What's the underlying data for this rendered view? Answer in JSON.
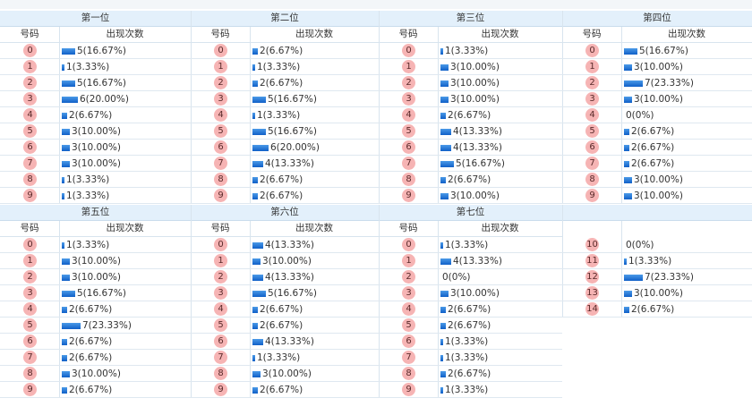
{
  "panels": [
    {
      "title": "第一位",
      "col_number": "号码",
      "col_count": "出现次数",
      "rows": [
        {
          "n": "0",
          "text": "5(16.67%)",
          "count": 5
        },
        {
          "n": "1",
          "text": "1(3.33%)",
          "count": 1
        },
        {
          "n": "2",
          "text": "5(16.67%)",
          "count": 5
        },
        {
          "n": "3",
          "text": "6(20.00%)",
          "count": 6
        },
        {
          "n": "4",
          "text": "2(6.67%)",
          "count": 2
        },
        {
          "n": "5",
          "text": "3(10.00%)",
          "count": 3
        },
        {
          "n": "6",
          "text": "3(10.00%)",
          "count": 3
        },
        {
          "n": "7",
          "text": "3(10.00%)",
          "count": 3
        },
        {
          "n": "8",
          "text": "1(3.33%)",
          "count": 1
        },
        {
          "n": "9",
          "text": "1(3.33%)",
          "count": 1
        }
      ]
    },
    {
      "title": "第二位",
      "col_number": "号码",
      "col_count": "出现次数",
      "rows": [
        {
          "n": "0",
          "text": "2(6.67%)",
          "count": 2
        },
        {
          "n": "1",
          "text": "1(3.33%)",
          "count": 1
        },
        {
          "n": "2",
          "text": "2(6.67%)",
          "count": 2
        },
        {
          "n": "3",
          "text": "5(16.67%)",
          "count": 5
        },
        {
          "n": "4",
          "text": "1(3.33%)",
          "count": 1
        },
        {
          "n": "5",
          "text": "5(16.67%)",
          "count": 5
        },
        {
          "n": "6",
          "text": "6(20.00%)",
          "count": 6
        },
        {
          "n": "7",
          "text": "4(13.33%)",
          "count": 4
        },
        {
          "n": "8",
          "text": "2(6.67%)",
          "count": 2
        },
        {
          "n": "9",
          "text": "2(6.67%)",
          "count": 2
        }
      ]
    },
    {
      "title": "第三位",
      "col_number": "号码",
      "col_count": "出现次数",
      "rows": [
        {
          "n": "0",
          "text": "1(3.33%)",
          "count": 1
        },
        {
          "n": "1",
          "text": "3(10.00%)",
          "count": 3
        },
        {
          "n": "2",
          "text": "3(10.00%)",
          "count": 3
        },
        {
          "n": "3",
          "text": "3(10.00%)",
          "count": 3
        },
        {
          "n": "4",
          "text": "2(6.67%)",
          "count": 2
        },
        {
          "n": "5",
          "text": "4(13.33%)",
          "count": 4
        },
        {
          "n": "6",
          "text": "4(13.33%)",
          "count": 4
        },
        {
          "n": "7",
          "text": "5(16.67%)",
          "count": 5
        },
        {
          "n": "8",
          "text": "2(6.67%)",
          "count": 2
        },
        {
          "n": "9",
          "text": "3(10.00%)",
          "count": 3
        }
      ]
    },
    {
      "title": "第四位",
      "col_number": "号码",
      "col_count": "出现次数",
      "rows": [
        {
          "n": "0",
          "text": "5(16.67%)",
          "count": 5
        },
        {
          "n": "1",
          "text": "3(10.00%)",
          "count": 3
        },
        {
          "n": "2",
          "text": "7(23.33%)",
          "count": 7
        },
        {
          "n": "3",
          "text": "3(10.00%)",
          "count": 3
        },
        {
          "n": "4",
          "text": "0(0%)",
          "count": 0
        },
        {
          "n": "5",
          "text": "2(6.67%)",
          "count": 2
        },
        {
          "n": "6",
          "text": "2(6.67%)",
          "count": 2
        },
        {
          "n": "7",
          "text": "2(6.67%)",
          "count": 2
        },
        {
          "n": "8",
          "text": "3(10.00%)",
          "count": 3
        },
        {
          "n": "9",
          "text": "3(10.00%)",
          "count": 3
        }
      ]
    },
    {
      "title": "第五位",
      "col_number": "号码",
      "col_count": "出现次数",
      "rows": [
        {
          "n": "0",
          "text": "1(3.33%)",
          "count": 1
        },
        {
          "n": "1",
          "text": "3(10.00%)",
          "count": 3
        },
        {
          "n": "2",
          "text": "3(10.00%)",
          "count": 3
        },
        {
          "n": "3",
          "text": "5(16.67%)",
          "count": 5
        },
        {
          "n": "4",
          "text": "2(6.67%)",
          "count": 2
        },
        {
          "n": "5",
          "text": "7(23.33%)",
          "count": 7
        },
        {
          "n": "6",
          "text": "2(6.67%)",
          "count": 2
        },
        {
          "n": "7",
          "text": "2(6.67%)",
          "count": 2
        },
        {
          "n": "8",
          "text": "3(10.00%)",
          "count": 3
        },
        {
          "n": "9",
          "text": "2(6.67%)",
          "count": 2
        }
      ]
    },
    {
      "title": "第六位",
      "col_number": "号码",
      "col_count": "出现次数",
      "rows": [
        {
          "n": "0",
          "text": "4(13.33%)",
          "count": 4
        },
        {
          "n": "1",
          "text": "3(10.00%)",
          "count": 3
        },
        {
          "n": "2",
          "text": "4(13.33%)",
          "count": 4
        },
        {
          "n": "3",
          "text": "5(16.67%)",
          "count": 5
        },
        {
          "n": "4",
          "text": "2(6.67%)",
          "count": 2
        },
        {
          "n": "5",
          "text": "2(6.67%)",
          "count": 2
        },
        {
          "n": "6",
          "text": "4(13.33%)",
          "count": 4
        },
        {
          "n": "7",
          "text": "1(3.33%)",
          "count": 1
        },
        {
          "n": "8",
          "text": "3(10.00%)",
          "count": 3
        },
        {
          "n": "9",
          "text": "2(6.67%)",
          "count": 2
        }
      ]
    },
    {
      "title": "第七位",
      "col_number": "号码",
      "col_count": "出现次数",
      "rows": [
        {
          "n": "0",
          "text": "1(3.33%)",
          "count": 1
        },
        {
          "n": "1",
          "text": "4(13.33%)",
          "count": 4
        },
        {
          "n": "2",
          "text": "0(0%)",
          "count": 0
        },
        {
          "n": "3",
          "text": "3(10.00%)",
          "count": 3
        },
        {
          "n": "4",
          "text": "2(6.67%)",
          "count": 2
        },
        {
          "n": "5",
          "text": "2(6.67%)",
          "count": 2
        },
        {
          "n": "6",
          "text": "1(3.33%)",
          "count": 1
        },
        {
          "n": "7",
          "text": "1(3.33%)",
          "count": 1
        },
        {
          "n": "8",
          "text": "2(6.67%)",
          "count": 2
        },
        {
          "n": "9",
          "text": "1(3.33%)",
          "count": 1
        }
      ]
    },
    {
      "rows": [
        {
          "n": "10",
          "text": "0(0%)",
          "count": 0
        },
        {
          "n": "11",
          "text": "1(3.33%)",
          "count": 1
        },
        {
          "n": "12",
          "text": "7(23.33%)",
          "count": 7
        },
        {
          "n": "13",
          "text": "3(10.00%)",
          "count": 3
        },
        {
          "n": "14",
          "text": "2(6.67%)",
          "count": 2
        }
      ]
    }
  ]
}
